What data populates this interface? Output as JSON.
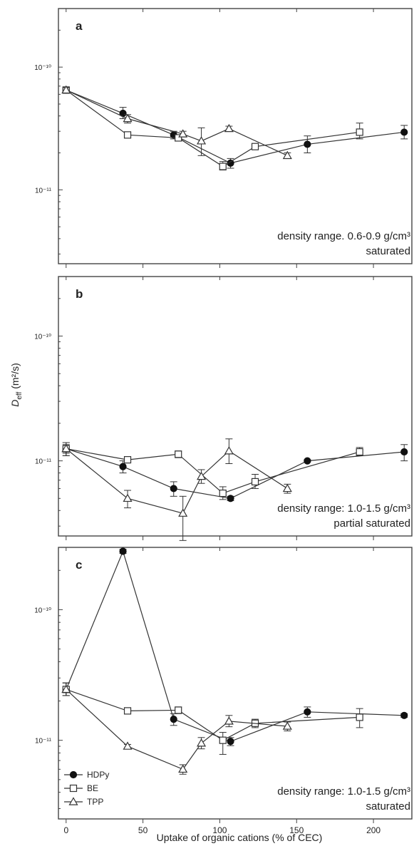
{
  "figure": {
    "ylabel_main": "D",
    "ylabel_sub": "eff",
    "ylabel_rest": " (m²/s)",
    "xlabel": "Uptake of organic cations (% of CEC)"
  },
  "legend": {
    "placement": "bottom-left of panel c",
    "entries": [
      {
        "name": "HDPy",
        "marker": "filled-circle"
      },
      {
        "name": "BE",
        "marker": "open-square"
      },
      {
        "name": "TPP",
        "marker": "open-triangle"
      }
    ]
  },
  "chart_data": [
    {
      "type": "line",
      "panel_label": "a",
      "note_line1": "density range. 0.6-0.9 g/cm³",
      "note_line2": "saturated",
      "xlim": [
        -5,
        225
      ],
      "ylim": [
        2.5e-12,
        3e-10
      ],
      "yscale": "log",
      "yticks": [
        {
          "v": 1e-10,
          "label": "10⁻¹⁰"
        },
        {
          "v": 1e-11,
          "label": "10⁻¹¹"
        }
      ],
      "xticks": [
        0,
        50,
        100,
        150,
        200
      ],
      "show_x_tick_labels": false,
      "series": [
        {
          "name": "HDPy",
          "marker": "filled-circle",
          "points": [
            [
              0,
              6.5e-11,
              6.8e-11,
              6.2e-11
            ],
            [
              37,
              4.2e-11,
              4.7e-11,
              3.8e-11
            ],
            [
              70,
              2.8e-11,
              3e-11,
              2.6e-11
            ],
            [
              107,
              1.65e-11,
              1.8e-11,
              1.5e-11
            ],
            [
              157,
              2.35e-11,
              2.75e-11,
              2e-11
            ],
            [
              220,
              2.95e-11,
              3.35e-11,
              2.6e-11
            ]
          ]
        },
        {
          "name": "BE",
          "marker": "open-square",
          "points": [
            [
              0,
              6.5e-11,
              6.8e-11,
              6.2e-11
            ],
            [
              40,
              2.8e-11,
              2.9e-11,
              2.7e-11
            ],
            [
              73,
              2.65e-11,
              2.8e-11,
              2.5e-11
            ],
            [
              102,
              1.55e-11,
              1.7e-11,
              1.45e-11
            ],
            [
              123,
              2.25e-11,
              2.35e-11,
              2.15e-11
            ],
            [
              191,
              2.95e-11,
              3.5e-11,
              2.6e-11
            ]
          ]
        },
        {
          "name": "TPP",
          "marker": "open-triangle",
          "points": [
            [
              0,
              6.5e-11,
              6.8e-11,
              6.2e-11
            ],
            [
              40,
              3.8e-11,
              4.1e-11,
              3.5e-11
            ],
            [
              76,
              2.85e-11,
              3e-11,
              2.7e-11
            ],
            [
              88,
              2.5e-11,
              3.2e-11,
              1.9e-11
            ],
            [
              106,
              3.15e-11,
              3.3e-11,
              3e-11
            ],
            [
              144,
              1.9e-11,
              2e-11,
              1.8e-11
            ]
          ]
        }
      ]
    },
    {
      "type": "line",
      "panel_label": "b",
      "note_line1": "density range: 1.0-1.5 g/cm³",
      "note_line2": "partial saturated",
      "xlim": [
        -5,
        225
      ],
      "ylim": [
        2.5e-12,
        3e-10
      ],
      "yscale": "log",
      "yticks": [
        {
          "v": 1e-10,
          "label": "10⁻¹⁰"
        },
        {
          "v": 1e-11,
          "label": "10⁻¹¹"
        }
      ],
      "xticks": [
        0,
        50,
        100,
        150,
        200
      ],
      "show_x_tick_labels": false,
      "series": [
        {
          "name": "HDPy",
          "marker": "filled-circle",
          "points": [
            [
              0,
              1.25e-11,
              1.35e-11,
              1.15e-11
            ],
            [
              37,
              9e-12,
              1e-11,
              8e-12
            ],
            [
              70,
              6e-12,
              6.8e-12,
              5.2e-12
            ],
            [
              107,
              5e-12,
              5.2e-12,
              4.8e-12
            ],
            [
              157,
              1e-11,
              1.02e-11,
              9.8e-12
            ],
            [
              220,
              1.18e-11,
              1.35e-11,
              1e-11
            ]
          ]
        },
        {
          "name": "BE",
          "marker": "open-square",
          "points": [
            [
              0,
              1.25e-11,
              1.4e-11,
              1.1e-11
            ],
            [
              40,
              1.02e-11,
              1.06e-11,
              9.8e-12
            ],
            [
              73,
              1.13e-11,
              1.2e-11,
              1.06e-11
            ],
            [
              102,
              5.5e-12,
              6.2e-12,
              4.9e-12
            ],
            [
              123,
              6.8e-12,
              7.8e-12,
              6e-12
            ],
            [
              191,
              1.18e-11,
              1.28e-11,
              1.1e-11
            ]
          ]
        },
        {
          "name": "TPP",
          "marker": "open-triangle",
          "points": [
            [
              0,
              1.25e-11,
              1.4e-11,
              1.1e-11
            ],
            [
              40,
              5e-12,
              5.8e-12,
              4.2e-12
            ],
            [
              76,
              3.8e-12,
              5.2e-12,
              2.3e-12
            ],
            [
              88,
              7.5e-12,
              8.5e-12,
              6.6e-12
            ],
            [
              106,
              1.2e-11,
              1.5e-11,
              9.5e-12
            ],
            [
              144,
              6e-12,
              6.5e-12,
              5.5e-12
            ]
          ]
        }
      ]
    },
    {
      "type": "line",
      "panel_label": "c",
      "note_line1": "density range: 1.0-1.5 g/cm³",
      "note_line2": "saturated",
      "xlim": [
        -5,
        225
      ],
      "ylim": [
        2.5e-12,
        3e-10
      ],
      "yscale": "log",
      "yticks": [
        {
          "v": 1e-10,
          "label": "10⁻¹⁰"
        },
        {
          "v": 1e-11,
          "label": "10⁻¹¹"
        }
      ],
      "xticks": [
        0,
        50,
        100,
        150,
        200
      ],
      "show_x_tick_labels": true,
      "series": [
        {
          "name": "HDPy",
          "marker": "filled-circle",
          "points": [
            [
              0,
              2.45e-11,
              2.75e-11,
              2.2e-11
            ],
            [
              37,
              2.8e-10,
              2.9e-10,
              2.7e-10
            ],
            [
              70,
              1.45e-11,
              1.6e-11,
              1.3e-11
            ],
            [
              107,
              9.8e-12,
              1.05e-11,
              9.1e-12
            ],
            [
              157,
              1.65e-11,
              1.8e-11,
              1.5e-11
            ],
            [
              220,
              1.55e-11,
              1.6e-11,
              1.5e-11
            ]
          ]
        },
        {
          "name": "BE",
          "marker": "open-square",
          "points": [
            [
              0,
              2.45e-11,
              2.75e-11,
              2.2e-11
            ],
            [
              40,
              1.68e-11,
              1.72e-11,
              1.64e-11
            ],
            [
              73,
              1.7e-11,
              1.8e-11,
              1.6e-11
            ],
            [
              102,
              1e-11,
              1.15e-11,
              7.8e-12
            ],
            [
              123,
              1.35e-11,
              1.45e-11,
              1.25e-11
            ],
            [
              191,
              1.5e-11,
              1.75e-11,
              1.25e-11
            ]
          ]
        },
        {
          "name": "TPP",
          "marker": "open-triangle",
          "points": [
            [
              0,
              2.45e-11,
              2.75e-11,
              2.2e-11
            ],
            [
              40,
              9e-12,
              9.3e-12,
              8.7e-12
            ],
            [
              76,
              6e-12,
              6.5e-12,
              5.5e-12
            ],
            [
              88,
              9.5e-12,
              1.05e-11,
              8.6e-12
            ],
            [
              106,
              1.4e-11,
              1.55e-11,
              1.27e-11
            ],
            [
              144,
              1.28e-11,
              1.38e-11,
              1.18e-11
            ]
          ]
        }
      ]
    }
  ]
}
